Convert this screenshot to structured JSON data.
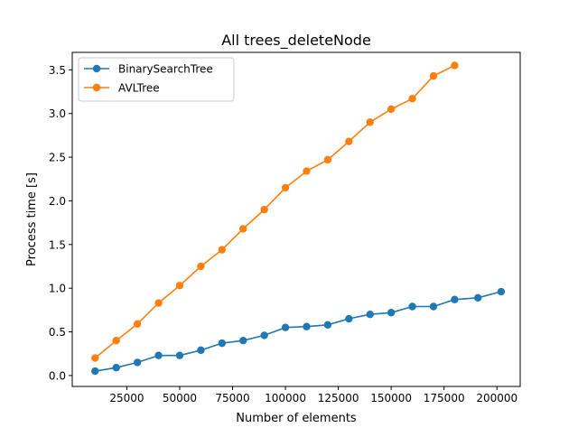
{
  "chart_data": {
    "type": "line",
    "title": "All trees_deleteNode",
    "xlabel": "Number of elements",
    "ylabel": "Process time [s]",
    "xlim": [
      -800,
      211000
    ],
    "ylim": [
      -0.125,
      3.7
    ],
    "xticks": [
      {
        "value": 25000,
        "label": "25000"
      },
      {
        "value": 50000,
        "label": "50000"
      },
      {
        "value": 75000,
        "label": "75000"
      },
      {
        "value": 100000,
        "label": "100000"
      },
      {
        "value": 125000,
        "label": "125000"
      },
      {
        "value": 150000,
        "label": "150000"
      },
      {
        "value": 175000,
        "label": "175000"
      },
      {
        "value": 200000,
        "label": "200000"
      }
    ],
    "yticks": [
      {
        "value": 0.0,
        "label": "0.0"
      },
      {
        "value": 0.5,
        "label": "0.5"
      },
      {
        "value": 1.0,
        "label": "1.0"
      },
      {
        "value": 1.5,
        "label": "1.5"
      },
      {
        "value": 2.0,
        "label": "2.0"
      },
      {
        "value": 2.5,
        "label": "2.5"
      },
      {
        "value": 3.0,
        "label": "3.0"
      },
      {
        "value": 3.5,
        "label": "3.5"
      }
    ],
    "grid": false,
    "legend_position": "upper-left",
    "series": [
      {
        "name": "BinarySearchTree",
        "color": "#1f77b4",
        "marker": "circle",
        "points": [
          {
            "x": 10000,
            "y": 0.05
          },
          {
            "x": 20000,
            "y": 0.09
          },
          {
            "x": 30000,
            "y": 0.15
          },
          {
            "x": 40000,
            "y": 0.23
          },
          {
            "x": 50000,
            "y": 0.23
          },
          {
            "x": 60000,
            "y": 0.29
          },
          {
            "x": 70000,
            "y": 0.37
          },
          {
            "x": 80000,
            "y": 0.4
          },
          {
            "x": 90000,
            "y": 0.46
          },
          {
            "x": 100000,
            "y": 0.55
          },
          {
            "x": 110000,
            "y": 0.56
          },
          {
            "x": 120000,
            "y": 0.58
          },
          {
            "x": 130000,
            "y": 0.65
          },
          {
            "x": 140000,
            "y": 0.7
          },
          {
            "x": 150000,
            "y": 0.72
          },
          {
            "x": 160000,
            "y": 0.79
          },
          {
            "x": 170000,
            "y": 0.79
          },
          {
            "x": 180000,
            "y": 0.87
          },
          {
            "x": 191000,
            "y": 0.89
          },
          {
            "x": 202000,
            "y": 0.96
          }
        ]
      },
      {
        "name": "AVLTree",
        "color": "#ff7f0e",
        "marker": "circle",
        "points": [
          {
            "x": 10000,
            "y": 0.2
          },
          {
            "x": 20000,
            "y": 0.4
          },
          {
            "x": 30000,
            "y": 0.59
          },
          {
            "x": 40000,
            "y": 0.83
          },
          {
            "x": 50000,
            "y": 1.03
          },
          {
            "x": 60000,
            "y": 1.25
          },
          {
            "x": 70000,
            "y": 1.44
          },
          {
            "x": 80000,
            "y": 1.68
          },
          {
            "x": 90000,
            "y": 1.9
          },
          {
            "x": 100000,
            "y": 2.15
          },
          {
            "x": 110000,
            "y": 2.34
          },
          {
            "x": 120000,
            "y": 2.47
          },
          {
            "x": 130000,
            "y": 2.68
          },
          {
            "x": 140000,
            "y": 2.9
          },
          {
            "x": 150000,
            "y": 3.05
          },
          {
            "x": 160000,
            "y": 3.17
          },
          {
            "x": 170000,
            "y": 3.43
          },
          {
            "x": 180000,
            "y": 3.55
          }
        ]
      }
    ]
  }
}
